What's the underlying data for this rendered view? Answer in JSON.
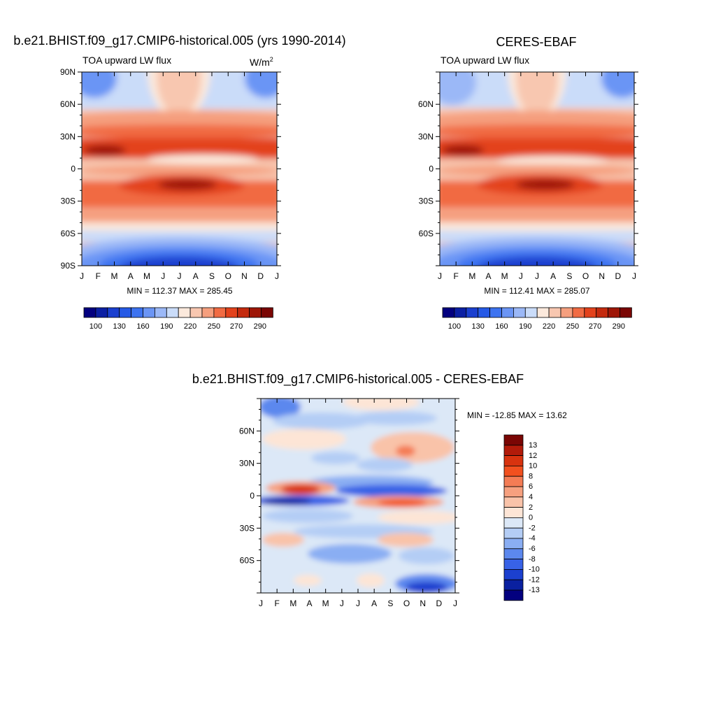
{
  "chart_data": [
    {
      "type": "heatmap",
      "title": "b.e21.BHIST.f09_g17.CMIP6-historical.005 (yrs 1990-2014)",
      "subtitle_left": "TOA upward LW flux",
      "units_label": "W/m",
      "units_superscript": "2",
      "x_tick_labels": [
        "J",
        "F",
        "M",
        "A",
        "M",
        "J",
        "J",
        "A",
        "S",
        "O",
        "N",
        "D",
        "J"
      ],
      "y_tick_labels": [
        "90N",
        "60N",
        "30N",
        "0",
        "30S",
        "60S",
        "90S"
      ],
      "y_tick_values": [
        90,
        60,
        30,
        0,
        -30,
        -60,
        -90
      ],
      "ylim": [
        -90,
        90
      ],
      "stats_label": "MIN = 112.37 MAX = 285.45",
      "stats": {
        "min": 112.37,
        "max": 285.45
      },
      "colorbar": {
        "orientation": "horizontal",
        "labels": [
          "100",
          "130",
          "160",
          "190",
          "220",
          "250",
          "270",
          "290"
        ],
        "levels": [
          90,
          100,
          115,
          130,
          145,
          160,
          175,
          190,
          205,
          220,
          235,
          250,
          260,
          270,
          280,
          290
        ],
        "colors": [
          "#03007f",
          "#0b1fa3",
          "#1a3fcf",
          "#2559e6",
          "#3d73f0",
          "#6b95f5",
          "#9bb8f7",
          "#cadcf9",
          "#fbe9dc",
          "#f8c7b0",
          "#f59f7e",
          "#f16b43",
          "#e3421c",
          "#c42a0e",
          "#9e1607",
          "#7a0604"
        ]
      }
    },
    {
      "type": "heatmap",
      "title": "CERES-EBAF",
      "subtitle_left": "TOA upward LW flux",
      "x_tick_labels": [
        "J",
        "F",
        "M",
        "A",
        "M",
        "J",
        "J",
        "A",
        "S",
        "O",
        "N",
        "D",
        "J"
      ],
      "y_tick_labels": [
        "60N",
        "30N",
        "0",
        "30S",
        "60S"
      ],
      "y_tick_values": [
        60,
        30,
        0,
        -30,
        -60
      ],
      "ylim": [
        -90,
        90
      ],
      "stats_label": "MIN = 112.41 MAX = 285.07",
      "stats": {
        "min": 112.41,
        "max": 285.07
      },
      "colorbar": {
        "orientation": "horizontal",
        "labels": [
          "100",
          "130",
          "160",
          "190",
          "220",
          "250",
          "270",
          "290"
        ]
      }
    },
    {
      "type": "heatmap",
      "title": "b.e21.BHIST.f09_g17.CMIP6-historical.005 - CERES-EBAF",
      "x_tick_labels": [
        "J",
        "F",
        "M",
        "A",
        "M",
        "J",
        "J",
        "A",
        "S",
        "O",
        "N",
        "D",
        "J"
      ],
      "y_tick_labels": [
        "60N",
        "30N",
        "0",
        "30S",
        "60S"
      ],
      "y_tick_values": [
        60,
        30,
        0,
        -30,
        -60
      ],
      "ylim": [
        -90,
        90
      ],
      "stats_label": "MIN = -12.85 MAX =  13.62",
      "stats": {
        "min": -12.85,
        "max": 13.62
      },
      "colorbar": {
        "orientation": "vertical",
        "labels": [
          "13",
          "12",
          "10",
          "8",
          "6",
          "4",
          "2",
          "0",
          "-2",
          "-4",
          "-6",
          "-8",
          "-10",
          "-12",
          "-13"
        ],
        "levels": [
          13,
          12,
          10,
          8,
          6,
          4,
          2,
          0,
          -2,
          -4,
          -6,
          -8,
          -10,
          -12,
          -13
        ],
        "colors": [
          "#7a0604",
          "#b21b0a",
          "#d8330f",
          "#f2501f",
          "#f47c55",
          "#f6a07f",
          "#f9c3a9",
          "#fde5d6",
          "#dce8f7",
          "#b4cdf5",
          "#8aaef3",
          "#5c88ee",
          "#3862e6",
          "#1c40cf",
          "#0a20a0",
          "#03007f"
        ]
      }
    }
  ]
}
